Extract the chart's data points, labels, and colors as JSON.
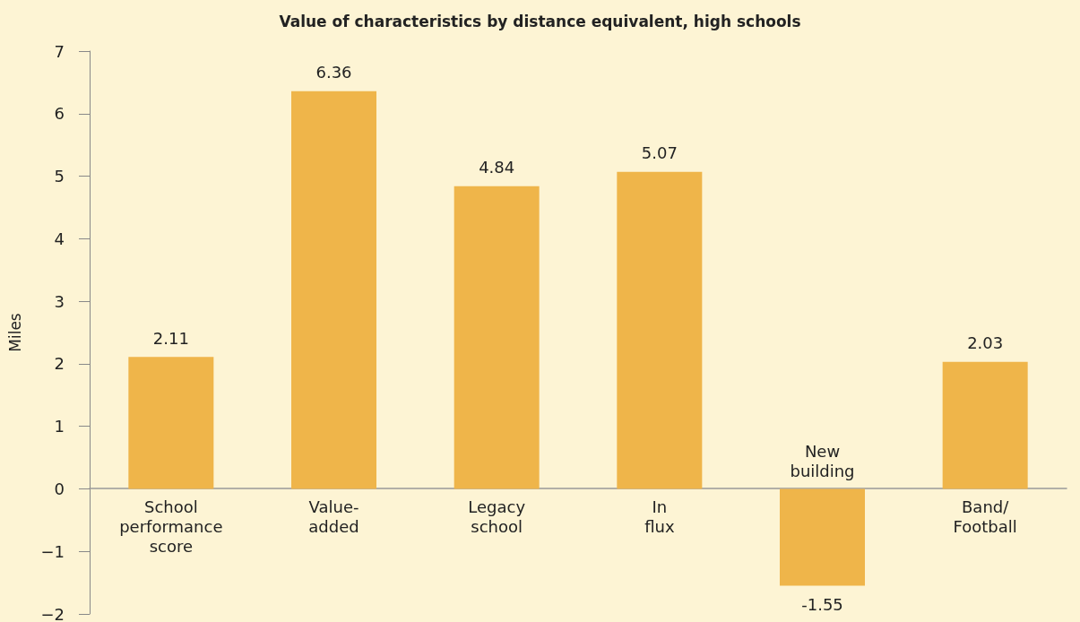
{
  "chart_data": {
    "type": "bar",
    "title": "Value of characteristics by distance equivalent, high schools",
    "ylabel": "Miles",
    "categories": [
      "School performance score",
      "Value-added",
      "Legacy school",
      "In flux",
      "New building",
      "Band/Football"
    ],
    "values": [
      2.11,
      6.36,
      4.84,
      5.07,
      -1.55,
      2.03
    ],
    "color": "#efb54a",
    "ylim": [
      -2,
      7
    ],
    "yticks": [
      -2,
      -1,
      0,
      1,
      2,
      3,
      4,
      5,
      6,
      7
    ],
    "grid": false,
    "data_labels": true
  }
}
